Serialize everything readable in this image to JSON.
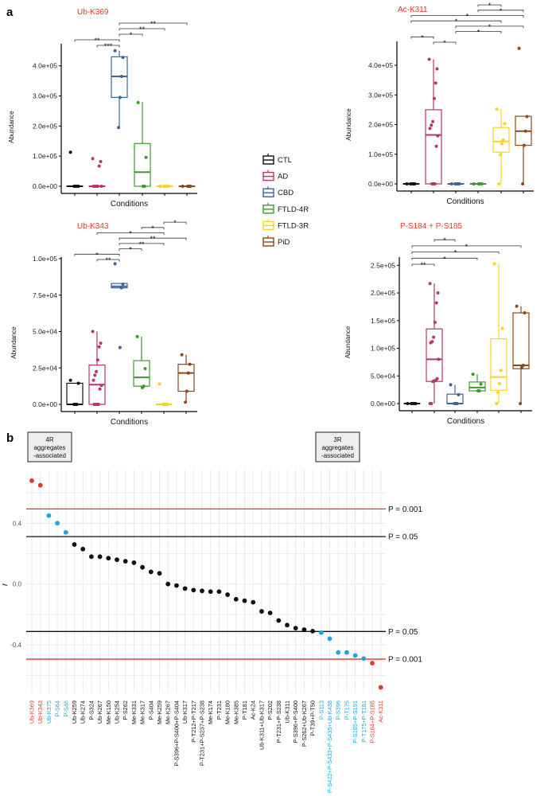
{
  "panel_labels": {
    "a": "a",
    "b": "b"
  },
  "groups": [
    "CTL",
    "AD",
    "CBD",
    "FTLD-4R",
    "FTLD-3R",
    "PiD"
  ],
  "group_colors": {
    "CTL": "#111111",
    "AD": "#b8346b",
    "CBD": "#3d6699",
    "FTLD-4R": "#3c9b2b",
    "FTLD-3R": "#f9d423",
    "PiD": "#8b4a1c"
  },
  "chart_data": [
    {
      "type": "boxplot",
      "title": "Ub-K369",
      "xlabel": "Conditions",
      "ylabel": "Abundance",
      "ylim": [
        0,
        470000
      ],
      "yticks": [
        0,
        100000,
        200000,
        300000,
        400000
      ],
      "ytick_labels": [
        "0.0e+00",
        "1.0e+05",
        "2.0e+05",
        "3.0e+05",
        "4.0e+05"
      ],
      "boxes": [
        {
          "group": "CTL",
          "q1": 0,
          "median": 0,
          "q3": 0,
          "lo": 0,
          "hi": 0,
          "points": [
            113000,
            0,
            0,
            0,
            0
          ]
        },
        {
          "group": "AD",
          "q1": 0,
          "median": 0,
          "q3": 0,
          "lo": 0,
          "hi": 0,
          "points": [
            92000,
            82000,
            67000,
            0,
            0,
            0,
            0,
            0
          ]
        },
        {
          "group": "CBD",
          "q1": 295000,
          "median": 365000,
          "q3": 430000,
          "lo": 195000,
          "hi": 450000,
          "points": [
            450000,
            428000,
            365000,
            295000,
            195000
          ]
        },
        {
          "group": "FTLD-4R",
          "q1": 0,
          "median": 47000,
          "q3": 142000,
          "lo": 0,
          "hi": 280000,
          "points": [
            278000,
            96000,
            0,
            0
          ]
        },
        {
          "group": "FTLD-3R",
          "q1": 0,
          "median": 0,
          "q3": 0,
          "lo": 0,
          "hi": 0,
          "points": [
            0,
            0,
            0,
            0,
            0
          ]
        },
        {
          "group": "PiD",
          "q1": 0,
          "median": 0,
          "q3": 0,
          "lo": 0,
          "hi": 0,
          "points": [
            0,
            0,
            0,
            0
          ]
        }
      ],
      "comparisons": [
        {
          "from": "AD",
          "to": "CBD",
          "label": "***"
        },
        {
          "from": "CTL",
          "to": "CBD",
          "label": "**"
        },
        {
          "from": "CBD",
          "to": "FTLD-4R",
          "label": "*"
        },
        {
          "from": "CBD",
          "to": "FTLD-3R",
          "label": "**"
        },
        {
          "from": "CBD",
          "to": "PiD",
          "label": "**"
        }
      ]
    },
    {
      "type": "boxplot",
      "title": "Ac-K311",
      "xlabel": "Conditions",
      "ylabel": "Abundance",
      "ylim": [
        0,
        470000
      ],
      "yticks": [
        0,
        100000,
        200000,
        300000,
        400000
      ],
      "ytick_labels": [
        "0.0e+00",
        "1.0e+05",
        "2.0e+05",
        "3.0e+05",
        "4.0e+05"
      ],
      "boxes": [
        {
          "group": "CTL",
          "q1": 0,
          "median": 0,
          "q3": 0,
          "lo": 0,
          "hi": 0,
          "points": [
            0,
            0,
            0,
            0,
            0
          ]
        },
        {
          "group": "AD",
          "q1": 0,
          "median": 165000,
          "q3": 250000,
          "lo": 0,
          "hi": 420000,
          "points": [
            420000,
            388000,
            340000,
            288000,
            210000,
            198000,
            187000,
            162000,
            127000,
            0,
            0,
            0
          ]
        },
        {
          "group": "CBD",
          "q1": 0,
          "median": 0,
          "q3": 0,
          "lo": 0,
          "hi": 0,
          "points": [
            0,
            0,
            0,
            0,
            0
          ]
        },
        {
          "group": "FTLD-4R",
          "q1": 0,
          "median": 0,
          "q3": 0,
          "lo": 0,
          "hi": 0,
          "points": [
            0,
            0,
            0,
            0
          ]
        },
        {
          "group": "FTLD-3R",
          "q1": 107000,
          "median": 143000,
          "q3": 190000,
          "lo": 0,
          "hi": 252000,
          "points": [
            252000,
            203000,
            148000,
            135000,
            98000,
            0
          ]
        },
        {
          "group": "PiD",
          "q1": 130000,
          "median": 178000,
          "q3": 228000,
          "lo": 0,
          "hi": 228000,
          "points": [
            457000,
            227000,
            178000,
            130000,
            0
          ]
        }
      ],
      "comparisons": [
        {
          "from": "AD",
          "to": "CBD",
          "label": "*"
        },
        {
          "from": "CTL",
          "to": "AD",
          "label": "*"
        },
        {
          "from": "CBD",
          "to": "FTLD-3R",
          "label": "*"
        },
        {
          "from": "CBD",
          "to": "PiD",
          "label": "*"
        },
        {
          "from": "CTL",
          "to": "FTLD-3R",
          "label": "*"
        },
        {
          "from": "CTL",
          "to": "PiD",
          "label": "*"
        },
        {
          "from": "FTLD-4R",
          "to": "PiD",
          "label": "*"
        },
        {
          "from": "FTLD-4R",
          "to": "FTLD-3R",
          "label": "*"
        }
      ]
    },
    {
      "type": "boxplot",
      "title": "Ub-K343",
      "xlabel": "Conditions",
      "ylabel": "Abundance",
      "ylim": [
        0,
        100000
      ],
      "yticks": [
        0,
        25000,
        50000,
        75000,
        100000
      ],
      "ytick_labels": [
        "0.0e+00",
        "2.5e+04",
        "5.0e+04",
        "7.5e+04",
        "1.0e+05"
      ],
      "boxes": [
        {
          "group": "CTL",
          "q1": 0,
          "median": 0,
          "q3": 14500,
          "lo": 0,
          "hi": 14500,
          "points": [
            16500,
            14500,
            0,
            0,
            0
          ]
        },
        {
          "group": "AD",
          "q1": 0,
          "median": 13500,
          "q3": 27000,
          "lo": 0,
          "hi": 50000,
          "points": [
            50000,
            42000,
            39500,
            30500,
            22500,
            20000,
            16500,
            13000,
            10500,
            0,
            0,
            0,
            0
          ]
        },
        {
          "group": "CBD",
          "q1": 80000,
          "median": 81000,
          "q3": 83000,
          "lo": 80000,
          "hi": 83000,
          "points": [
            96500,
            82500,
            80000,
            39000
          ]
        },
        {
          "group": "FTLD-4R",
          "q1": 12500,
          "median": 18500,
          "q3": 30000,
          "lo": 11500,
          "hi": 46500,
          "points": [
            46500,
            24500,
            12500,
            11500
          ]
        },
        {
          "group": "FTLD-3R",
          "q1": 0,
          "median": 0,
          "q3": 0,
          "lo": 0,
          "hi": 0,
          "points": [
            14000,
            0,
            0,
            0,
            0
          ]
        },
        {
          "group": "PiD",
          "q1": 9000,
          "median": 21500,
          "q3": 27500,
          "lo": 1500,
          "hi": 34000,
          "points": [
            34000,
            27500,
            21500,
            9000,
            1500
          ]
        }
      ],
      "comparisons": [
        {
          "from": "AD",
          "to": "CBD",
          "label": "**"
        },
        {
          "from": "CTL",
          "to": "CBD",
          "label": "*"
        },
        {
          "from": "CBD",
          "to": "FTLD-4R",
          "label": "*"
        },
        {
          "from": "CBD",
          "to": "FTLD-3R",
          "label": "**"
        },
        {
          "from": "CBD",
          "to": "PiD",
          "label": "**"
        },
        {
          "from": "AD",
          "to": "FTLD-3R",
          "label": "*"
        },
        {
          "from": "FTLD-4R",
          "to": "FTLD-3R",
          "label": "*"
        },
        {
          "from": "FTLD-3R",
          "to": "PiD",
          "label": "*"
        }
      ]
    },
    {
      "type": "boxplot",
      "title": "P-S184 + P-S185",
      "xlabel": "Conditions",
      "ylabel": "Abundance",
      "ylim": [
        0,
        250000
      ],
      "yticks": [
        0,
        50000,
        100000,
        150000,
        200000,
        250000
      ],
      "ytick_labels": [
        "0.0e+00",
        "5.0e+04",
        "1.0e+05",
        "1.5e+05",
        "2.0e+05",
        "2.5e+05"
      ],
      "boxes": [
        {
          "group": "CTL",
          "q1": 0,
          "median": 0,
          "q3": 0,
          "lo": 0,
          "hi": 0,
          "points": [
            0,
            0,
            0,
            0,
            0
          ]
        },
        {
          "group": "AD",
          "q1": 40000,
          "median": 80000,
          "q3": 135000,
          "lo": 0,
          "hi": 217000,
          "points": [
            217000,
            200000,
            182000,
            147000,
            120000,
            112000,
            110000,
            80000,
            45000,
            42000,
            41000,
            40000,
            0,
            0
          ]
        },
        {
          "group": "CBD",
          "q1": 0,
          "median": 0,
          "q3": 17000,
          "lo": 0,
          "hi": 34000,
          "points": [
            34000,
            16000,
            0,
            0,
            0
          ]
        },
        {
          "group": "FTLD-4R",
          "q1": 23000,
          "median": 29000,
          "q3": 39000,
          "lo": 23000,
          "hi": 53000,
          "points": [
            53000,
            35000,
            23000,
            23000
          ]
        },
        {
          "group": "FTLD-3R",
          "q1": 24000,
          "median": 48000,
          "q3": 117000,
          "lo": 0,
          "hi": 253000,
          "points": [
            253000,
            136000,
            60000,
            36000,
            20000,
            0
          ]
        },
        {
          "group": "PiD",
          "q1": 63000,
          "median": 69000,
          "q3": 164000,
          "lo": 0,
          "hi": 176000,
          "points": [
            176000,
            164000,
            69000,
            65000,
            0
          ]
        }
      ],
      "comparisons": [
        {
          "from": "CTL",
          "to": "AD",
          "label": "**"
        },
        {
          "from": "CTL",
          "to": "FTLD-4R",
          "label": "*"
        },
        {
          "from": "CTL",
          "to": "FTLD-3R",
          "label": "*"
        },
        {
          "from": "CTL",
          "to": "PiD",
          "label": "*"
        },
        {
          "from": "AD",
          "to": "CBD",
          "label": "*"
        }
      ]
    },
    {
      "type": "scatter",
      "title": "",
      "xlabel": "",
      "ylabel": "r",
      "ylim": [
        -0.72,
        0.72
      ],
      "yticks": [
        0.4,
        0.0,
        -0.4
      ],
      "ytick_labels": [
        "0.4",
        "0.0",
        "-0.4"
      ],
      "reference_lines": [
        {
          "value": 0.494,
          "label": "P = 0.001",
          "color": "#e8372a"
        },
        {
          "value": 0.312,
          "label": "P = 0.05",
          "color": "#111111"
        },
        {
          "value": -0.312,
          "label": "P = 0.05",
          "color": "#111111"
        },
        {
          "value": -0.494,
          "label": "P = 0.001",
          "color": "#e8372a"
        }
      ],
      "annotations": [
        {
          "text": [
            "4R",
            "aggregates",
            "-associated"
          ],
          "side": "left"
        },
        {
          "text": [
            "3R",
            "aggregates",
            "-associated"
          ],
          "side": "right"
        }
      ],
      "category_colors": {
        "sig001": "#e8372a",
        "sig05": "#1ba6df",
        "ns": "#111111"
      },
      "points": [
        {
          "label": "Ub-K369",
          "r": 0.68,
          "cls": "sig001"
        },
        {
          "label": "Ub-K343",
          "r": 0.65,
          "cls": "sig001"
        },
        {
          "label": "Ub-K375",
          "r": 0.45,
          "cls": "sig05"
        },
        {
          "label": "P-S64",
          "r": 0.4,
          "cls": "sig05"
        },
        {
          "label": "P-S46",
          "r": 0.34,
          "cls": "sig05"
        },
        {
          "label": "Ub-K259",
          "r": 0.26,
          "cls": "ns"
        },
        {
          "label": "Ub-K274",
          "r": 0.23,
          "cls": "ns"
        },
        {
          "label": "P-S324",
          "r": 0.18,
          "cls": "ns"
        },
        {
          "label": "Ub-K267",
          "r": 0.18,
          "cls": "ns"
        },
        {
          "label": "Me-K150",
          "r": 0.17,
          "cls": "ns"
        },
        {
          "label": "Ub-K254",
          "r": 0.16,
          "cls": "ns"
        },
        {
          "label": "P-S262",
          "r": 0.15,
          "cls": "ns"
        },
        {
          "label": "Me-K331",
          "r": 0.14,
          "cls": "ns"
        },
        {
          "label": "Me-K317",
          "r": 0.11,
          "cls": "ns"
        },
        {
          "label": "P-S404",
          "r": 0.08,
          "cls": "ns"
        },
        {
          "label": "Me-K259",
          "r": 0.07,
          "cls": "ns"
        },
        {
          "label": "Me-K267",
          "r": 0.0,
          "cls": "ns"
        },
        {
          "label": "P-S396+P-S400+P-S404",
          "r": -0.01,
          "cls": "ns"
        },
        {
          "label": "Ub-K317",
          "r": -0.03,
          "cls": "ns"
        },
        {
          "label": "P-T212+P-T217",
          "r": -0.04,
          "cls": "ns"
        },
        {
          "label": "P-T231+P-S237+P-S238",
          "r": -0.045,
          "cls": "ns"
        },
        {
          "label": "Me-K174",
          "r": -0.05,
          "cls": "ns"
        },
        {
          "label": "P-T231",
          "r": -0.05,
          "cls": "ns"
        },
        {
          "label": "Me-K180",
          "r": -0.07,
          "cls": "ns"
        },
        {
          "label": "Me-K385",
          "r": -0.1,
          "cls": "ns"
        },
        {
          "label": "P-T181",
          "r": -0.11,
          "cls": "ns"
        },
        {
          "label": "Ac-K24",
          "r": -0.12,
          "cls": "ns"
        },
        {
          "label": "Ub-K311+Ub-K317",
          "r": -0.18,
          "cls": "ns"
        },
        {
          "label": "P-S202",
          "r": -0.19,
          "cls": "ns"
        },
        {
          "label": "P-T231+P-S238",
          "r": -0.24,
          "cls": "ns"
        },
        {
          "label": "Ub-K311",
          "r": -0.27,
          "cls": "ns"
        },
        {
          "label": "P-S396+P-S400",
          "r": -0.29,
          "cls": "ns"
        },
        {
          "label": "P-S262+Ub-K267",
          "r": -0.3,
          "cls": "ns"
        },
        {
          "label": "P-T39+P-T50",
          "r": -0.31,
          "cls": "ns"
        },
        {
          "label": "P-S113",
          "r": -0.32,
          "cls": "sig05"
        },
        {
          "label": "P-S422+P-S433+P-S435+Ub-K438",
          "r": -0.36,
          "cls": "sig05"
        },
        {
          "label": "P-S396",
          "r": -0.45,
          "cls": "sig05"
        },
        {
          "label": "P-T175",
          "r": -0.45,
          "cls": "sig05"
        },
        {
          "label": "P-S185+P-S191",
          "r": -0.47,
          "cls": "sig05"
        },
        {
          "label": "P-T175+P-T181",
          "r": -0.49,
          "cls": "sig05"
        },
        {
          "label": "P-S184+P-S185",
          "r": -0.52,
          "cls": "sig001"
        },
        {
          "label": "Ac-K311",
          "r": -0.68,
          "cls": "sig001"
        }
      ]
    }
  ]
}
